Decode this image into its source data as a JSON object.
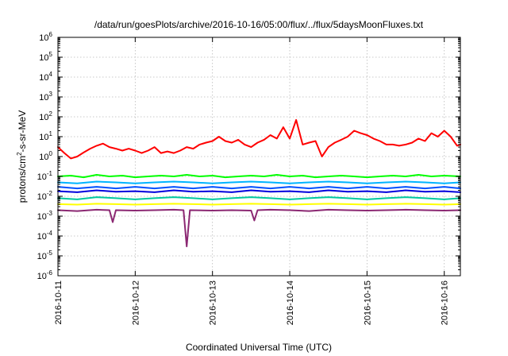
{
  "chart_data": {
    "type": "line",
    "title": "/data/run/goesPlots/archive/2016-10-16/05:00/flux/../flux/5daysMoonFluxes.txt",
    "xlabel": "Coordinated Universal Time (UTC)",
    "ylabel_base": "protons/cm",
    "ylabel_sup": "2",
    "ylabel_rest": "-s-sr-MeV",
    "yscale": "log",
    "ylim": [
      1e-06,
      1000000.0
    ],
    "xlim": [
      "2016-10-11T00:00",
      "2016-10-16T05:00"
    ],
    "x_ticks": [
      "2016-10-11",
      "2016-10-12",
      "2016-10-13",
      "2016-10-14",
      "2016-10-15",
      "2016-10-16"
    ],
    "y_ticks": [
      {
        "base": "10",
        "exp": "-6"
      },
      {
        "base": "10",
        "exp": "-5"
      },
      {
        "base": "10",
        "exp": "-4"
      },
      {
        "base": "10",
        "exp": "-3"
      },
      {
        "base": "10",
        "exp": "-2"
      },
      {
        "base": "10",
        "exp": "-1"
      },
      {
        "base": "10",
        "exp": "0"
      },
      {
        "base": "10",
        "exp": "1"
      },
      {
        "base": "10",
        "exp": "2"
      },
      {
        "base": "10",
        "exp": "3"
      },
      {
        "base": "10",
        "exp": "4"
      },
      {
        "base": "10",
        "exp": "5"
      },
      {
        "base": "10",
        "exp": "6"
      }
    ],
    "grid": true,
    "series": [
      {
        "color": "#ff0000",
        "points": [
          [
            "2016-10-11T00:00",
            3.0
          ],
          [
            "2016-10-11T02:00",
            1.5
          ],
          [
            "2016-10-11T04:00",
            0.8
          ],
          [
            "2016-10-11T06:00",
            1.0
          ],
          [
            "2016-10-11T08:00",
            1.6
          ],
          [
            "2016-10-11T10:00",
            2.5
          ],
          [
            "2016-10-11T12:00",
            3.5
          ],
          [
            "2016-10-11T14:00",
            4.5
          ],
          [
            "2016-10-11T16:00",
            3.0
          ],
          [
            "2016-10-11T18:00",
            2.5
          ],
          [
            "2016-10-11T20:00",
            2.0
          ],
          [
            "2016-10-11T22:00",
            2.5
          ],
          [
            "2016-10-12T00:00",
            2.0
          ],
          [
            "2016-10-12T02:00",
            1.5
          ],
          [
            "2016-10-12T04:00",
            2.0
          ],
          [
            "2016-10-12T06:00",
            3.0
          ],
          [
            "2016-10-12T08:00",
            1.5
          ],
          [
            "2016-10-12T10:00",
            1.8
          ],
          [
            "2016-10-12T12:00",
            1.5
          ],
          [
            "2016-10-12T14:00",
            2.0
          ],
          [
            "2016-10-12T16:00",
            3.0
          ],
          [
            "2016-10-12T18:00",
            2.5
          ],
          [
            "2016-10-12T20:00",
            4.0
          ],
          [
            "2016-10-12T22:00",
            5.0
          ],
          [
            "2016-10-13T00:00",
            6.0
          ],
          [
            "2016-10-13T02:00",
            10.0
          ],
          [
            "2016-10-13T04:00",
            6.0
          ],
          [
            "2016-10-13T06:00",
            5.0
          ],
          [
            "2016-10-13T08:00",
            7.0
          ],
          [
            "2016-10-13T10:00",
            4.0
          ],
          [
            "2016-10-13T12:00",
            3.0
          ],
          [
            "2016-10-13T14:00",
            5.0
          ],
          [
            "2016-10-13T16:00",
            7.0
          ],
          [
            "2016-10-13T18:00",
            12.0
          ],
          [
            "2016-10-13T20:00",
            8.0
          ],
          [
            "2016-10-13T22:00",
            30.0
          ],
          [
            "2016-10-14T00:00",
            8.0
          ],
          [
            "2016-10-14T02:00",
            70.0
          ],
          [
            "2016-10-14T04:00",
            4.0
          ],
          [
            "2016-10-14T06:00",
            5.0
          ],
          [
            "2016-10-14T08:00",
            6.0
          ],
          [
            "2016-10-14T10:00",
            1.0
          ],
          [
            "2016-10-14T12:00",
            3.0
          ],
          [
            "2016-10-14T14:00",
            5.0
          ],
          [
            "2016-10-14T16:00",
            7.0
          ],
          [
            "2016-10-14T18:00",
            10.0
          ],
          [
            "2016-10-14T20:00",
            20.0
          ],
          [
            "2016-10-14T22:00",
            15.0
          ],
          [
            "2016-10-15T00:00",
            12.0
          ],
          [
            "2016-10-15T02:00",
            8.0
          ],
          [
            "2016-10-15T04:00",
            6.0
          ],
          [
            "2016-10-15T06:00",
            4.0
          ],
          [
            "2016-10-15T08:00",
            4.0
          ],
          [
            "2016-10-15T10:00",
            3.5
          ],
          [
            "2016-10-15T12:00",
            4.0
          ],
          [
            "2016-10-15T14:00",
            5.0
          ],
          [
            "2016-10-15T16:00",
            8.0
          ],
          [
            "2016-10-15T18:00",
            6.0
          ],
          [
            "2016-10-15T20:00",
            15.0
          ],
          [
            "2016-10-15T22:00",
            10.0
          ],
          [
            "2016-10-16T00:00",
            20.0
          ],
          [
            "2016-10-16T02:00",
            10.0
          ],
          [
            "2016-10-16T04:00",
            3.5
          ],
          [
            "2016-10-16T05:00",
            4.0
          ]
        ]
      },
      {
        "color": "#00ff00",
        "points": [
          [
            "2016-10-11T00:00",
            0.1
          ],
          [
            "2016-10-11T04:00",
            0.11
          ],
          [
            "2016-10-11T08:00",
            0.09
          ],
          [
            "2016-10-11T12:00",
            0.12
          ],
          [
            "2016-10-11T16:00",
            0.1
          ],
          [
            "2016-10-11T20:00",
            0.11
          ],
          [
            "2016-10-12T00:00",
            0.09
          ],
          [
            "2016-10-12T04:00",
            0.1
          ],
          [
            "2016-10-12T08:00",
            0.11
          ],
          [
            "2016-10-12T12:00",
            0.1
          ],
          [
            "2016-10-12T16:00",
            0.12
          ],
          [
            "2016-10-12T20:00",
            0.1
          ],
          [
            "2016-10-13T00:00",
            0.11
          ],
          [
            "2016-10-13T04:00",
            0.09
          ],
          [
            "2016-10-13T08:00",
            0.1
          ],
          [
            "2016-10-13T12:00",
            0.11
          ],
          [
            "2016-10-13T16:00",
            0.1
          ],
          [
            "2016-10-13T20:00",
            0.12
          ],
          [
            "2016-10-14T00:00",
            0.1
          ],
          [
            "2016-10-14T04:00",
            0.11
          ],
          [
            "2016-10-14T08:00",
            0.09
          ],
          [
            "2016-10-14T12:00",
            0.1
          ],
          [
            "2016-10-14T16:00",
            0.11
          ],
          [
            "2016-10-14T20:00",
            0.1
          ],
          [
            "2016-10-15T00:00",
            0.09
          ],
          [
            "2016-10-15T04:00",
            0.1
          ],
          [
            "2016-10-15T08:00",
            0.11
          ],
          [
            "2016-10-15T12:00",
            0.1
          ],
          [
            "2016-10-15T16:00",
            0.12
          ],
          [
            "2016-10-15T20:00",
            0.1
          ],
          [
            "2016-10-16T00:00",
            0.11
          ],
          [
            "2016-10-16T05:00",
            0.1
          ]
        ]
      },
      {
        "color": "#00b4ff",
        "points": [
          [
            "2016-10-11T00:00",
            0.05
          ],
          [
            "2016-10-11T06:00",
            0.045
          ],
          [
            "2016-10-11T12:00",
            0.055
          ],
          [
            "2016-10-11T18:00",
            0.05
          ],
          [
            "2016-10-12T00:00",
            0.045
          ],
          [
            "2016-10-12T06:00",
            0.05
          ],
          [
            "2016-10-12T12:00",
            0.055
          ],
          [
            "2016-10-12T18:00",
            0.05
          ],
          [
            "2016-10-13T00:00",
            0.045
          ],
          [
            "2016-10-13T06:00",
            0.05
          ],
          [
            "2016-10-13T12:00",
            0.055
          ],
          [
            "2016-10-13T18:00",
            0.05
          ],
          [
            "2016-10-14T00:00",
            0.045
          ],
          [
            "2016-10-14T06:00",
            0.05
          ],
          [
            "2016-10-14T12:00",
            0.055
          ],
          [
            "2016-10-14T18:00",
            0.05
          ],
          [
            "2016-10-15T00:00",
            0.045
          ],
          [
            "2016-10-15T06:00",
            0.05
          ],
          [
            "2016-10-15T12:00",
            0.055
          ],
          [
            "2016-10-15T18:00",
            0.05
          ],
          [
            "2016-10-16T00:00",
            0.045
          ],
          [
            "2016-10-16T05:00",
            0.05
          ]
        ]
      },
      {
        "color": "#0050ff",
        "points": [
          [
            "2016-10-11T00:00",
            0.03
          ],
          [
            "2016-10-11T06:00",
            0.025
          ],
          [
            "2016-10-11T12:00",
            0.03
          ],
          [
            "2016-10-11T18:00",
            0.025
          ],
          [
            "2016-10-12T00:00",
            0.03
          ],
          [
            "2016-10-12T06:00",
            0.025
          ],
          [
            "2016-10-12T12:00",
            0.03
          ],
          [
            "2016-10-12T18:00",
            0.025
          ],
          [
            "2016-10-13T00:00",
            0.03
          ],
          [
            "2016-10-13T06:00",
            0.025
          ],
          [
            "2016-10-13T12:00",
            0.03
          ],
          [
            "2016-10-13T18:00",
            0.025
          ],
          [
            "2016-10-14T00:00",
            0.03
          ],
          [
            "2016-10-14T06:00",
            0.025
          ],
          [
            "2016-10-14T12:00",
            0.03
          ],
          [
            "2016-10-14T18:00",
            0.025
          ],
          [
            "2016-10-15T00:00",
            0.03
          ],
          [
            "2016-10-15T06:00",
            0.025
          ],
          [
            "2016-10-15T12:00",
            0.03
          ],
          [
            "2016-10-15T18:00",
            0.025
          ],
          [
            "2016-10-16T00:00",
            0.03
          ],
          [
            "2016-10-16T05:00",
            0.025
          ]
        ]
      },
      {
        "color": "#0000dd",
        "points": [
          [
            "2016-10-11T00:00",
            0.018
          ],
          [
            "2016-10-11T06:00",
            0.016
          ],
          [
            "2016-10-11T12:00",
            0.02
          ],
          [
            "2016-10-11T18:00",
            0.017
          ],
          [
            "2016-10-12T00:00",
            0.018
          ],
          [
            "2016-10-12T06:00",
            0.016
          ],
          [
            "2016-10-12T12:00",
            0.02
          ],
          [
            "2016-10-12T18:00",
            0.017
          ],
          [
            "2016-10-13T00:00",
            0.018
          ],
          [
            "2016-10-13T06:00",
            0.016
          ],
          [
            "2016-10-13T12:00",
            0.02
          ],
          [
            "2016-10-13T18:00",
            0.017
          ],
          [
            "2016-10-14T00:00",
            0.018
          ],
          [
            "2016-10-14T06:00",
            0.016
          ],
          [
            "2016-10-14T12:00",
            0.02
          ],
          [
            "2016-10-14T18:00",
            0.017
          ],
          [
            "2016-10-15T00:00",
            0.018
          ],
          [
            "2016-10-15T06:00",
            0.016
          ],
          [
            "2016-10-15T12:00",
            0.02
          ],
          [
            "2016-10-15T18:00",
            0.017
          ],
          [
            "2016-10-16T00:00",
            0.018
          ],
          [
            "2016-10-16T05:00",
            0.016
          ]
        ]
      },
      {
        "color": "#00c8a0",
        "points": [
          [
            "2016-10-11T00:00",
            0.008
          ],
          [
            "2016-10-11T06:00",
            0.007
          ],
          [
            "2016-10-11T12:00",
            0.009
          ],
          [
            "2016-10-11T18:00",
            0.008
          ],
          [
            "2016-10-12T00:00",
            0.007
          ],
          [
            "2016-10-12T06:00",
            0.008
          ],
          [
            "2016-10-12T12:00",
            0.009
          ],
          [
            "2016-10-12T18:00",
            0.008
          ],
          [
            "2016-10-13T00:00",
            0.007
          ],
          [
            "2016-10-13T06:00",
            0.008
          ],
          [
            "2016-10-13T12:00",
            0.009
          ],
          [
            "2016-10-13T18:00",
            0.008
          ],
          [
            "2016-10-14T00:00",
            0.007
          ],
          [
            "2016-10-14T06:00",
            0.008
          ],
          [
            "2016-10-14T12:00",
            0.009
          ],
          [
            "2016-10-14T18:00",
            0.008
          ],
          [
            "2016-10-15T00:00",
            0.007
          ],
          [
            "2016-10-15T06:00",
            0.008
          ],
          [
            "2016-10-15T12:00",
            0.009
          ],
          [
            "2016-10-15T18:00",
            0.008
          ],
          [
            "2016-10-16T00:00",
            0.007
          ],
          [
            "2016-10-16T05:00",
            0.008
          ]
        ]
      },
      {
        "color": "#ffff00",
        "points": [
          [
            "2016-10-11T00:00",
            0.004
          ],
          [
            "2016-10-11T06:00",
            0.0038
          ],
          [
            "2016-10-11T12:00",
            0.0042
          ],
          [
            "2016-10-11T18:00",
            0.004
          ],
          [
            "2016-10-12T00:00",
            0.0038
          ],
          [
            "2016-10-12T06:00",
            0.004
          ],
          [
            "2016-10-12T12:00",
            0.0042
          ],
          [
            "2016-10-12T18:00",
            0.004
          ],
          [
            "2016-10-13T00:00",
            0.0038
          ],
          [
            "2016-10-13T06:00",
            0.004
          ],
          [
            "2016-10-13T12:00",
            0.0042
          ],
          [
            "2016-10-13T18:00",
            0.004
          ],
          [
            "2016-10-14T00:00",
            0.0038
          ],
          [
            "2016-10-14T06:00",
            0.004
          ],
          [
            "2016-10-14T12:00",
            0.0042
          ],
          [
            "2016-10-14T18:00",
            0.004
          ],
          [
            "2016-10-15T00:00",
            0.0038
          ],
          [
            "2016-10-15T06:00",
            0.004
          ],
          [
            "2016-10-15T12:00",
            0.0042
          ],
          [
            "2016-10-15T18:00",
            0.004
          ],
          [
            "2016-10-16T00:00",
            0.0038
          ],
          [
            "2016-10-16T05:00",
            0.004
          ]
        ]
      },
      {
        "color": "#8b2872",
        "points": [
          [
            "2016-10-11T00:00",
            0.002
          ],
          [
            "2016-10-11T06:00",
            0.0018
          ],
          [
            "2016-10-11T12:00",
            0.0021
          ],
          [
            "2016-10-11T16:00",
            0.002
          ],
          [
            "2016-10-11T17:00",
            0.0005
          ],
          [
            "2016-10-11T18:00",
            0.002
          ],
          [
            "2016-10-12T00:00",
            0.0019
          ],
          [
            "2016-10-12T06:00",
            0.002
          ],
          [
            "2016-10-12T12:00",
            0.0021
          ],
          [
            "2016-10-12T15:00",
            0.002
          ],
          [
            "2016-10-12T16:00",
            3e-05
          ],
          [
            "2016-10-12T17:00",
            0.002
          ],
          [
            "2016-10-13T00:00",
            0.0019
          ],
          [
            "2016-10-13T06:00",
            0.002
          ],
          [
            "2016-10-13T12:00",
            0.0019
          ],
          [
            "2016-10-13T13:00",
            0.0006
          ],
          [
            "2016-10-13T14:00",
            0.002
          ],
          [
            "2016-10-13T18:00",
            0.0021
          ],
          [
            "2016-10-14T00:00",
            0.002
          ],
          [
            "2016-10-14T06:00",
            0.0018
          ],
          [
            "2016-10-14T12:00",
            0.0021
          ],
          [
            "2016-10-14T18:00",
            0.002
          ],
          [
            "2016-10-15T00:00",
            0.0019
          ],
          [
            "2016-10-15T06:00",
            0.002
          ],
          [
            "2016-10-15T12:00",
            0.0021
          ],
          [
            "2016-10-15T18:00",
            0.002
          ],
          [
            "2016-10-16T00:00",
            0.0019
          ],
          [
            "2016-10-16T05:00",
            0.002
          ]
        ]
      }
    ]
  }
}
